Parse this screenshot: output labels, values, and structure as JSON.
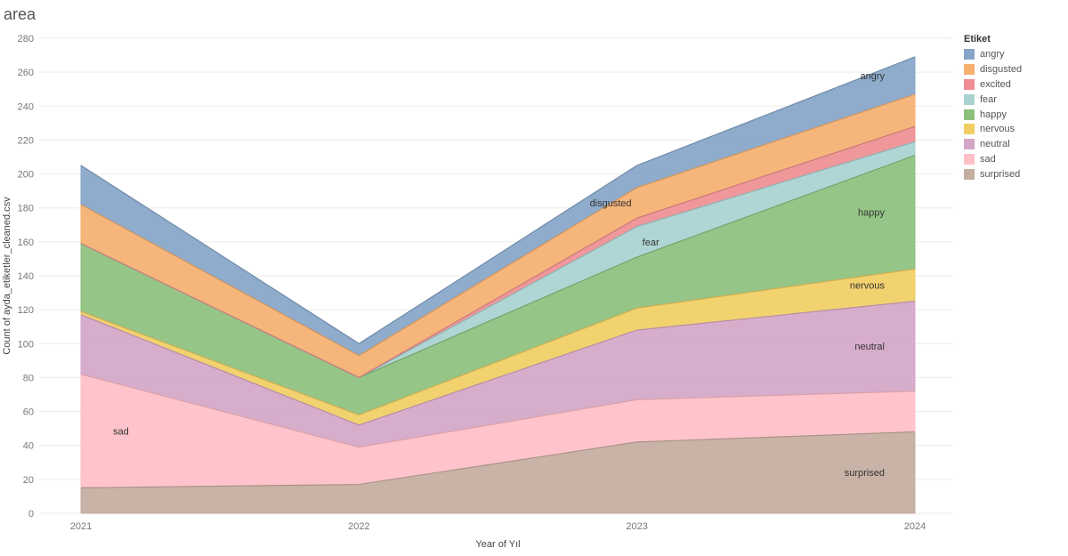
{
  "page": {
    "title": "area"
  },
  "legend": {
    "title": "Etiket"
  },
  "chart_data": {
    "type": "area",
    "stacked": true,
    "x": [
      "2021",
      "2022",
      "2023",
      "2024"
    ],
    "xlabel": "Year of Yıl",
    "ylabel": "Count of ayda_etiketler_cleaned.csv",
    "ylim": [
      0,
      280
    ],
    "yticks": [
      0,
      20,
      40,
      60,
      80,
      100,
      120,
      140,
      160,
      180,
      200,
      220,
      240,
      260,
      280
    ],
    "series": [
      {
        "name": "surprised",
        "color": "#c4ad9f",
        "values": [
          15,
          17,
          42,
          48
        ]
      },
      {
        "name": "sad",
        "color": "#ffbfc7",
        "values": [
          67,
          22,
          25,
          24
        ]
      },
      {
        "name": "neutral",
        "color": "#d4a6c8",
        "values": [
          35,
          13,
          41,
          53
        ]
      },
      {
        "name": "nervous",
        "color": "#f1ce63",
        "values": [
          2,
          6,
          13,
          19
        ]
      },
      {
        "name": "happy",
        "color": "#8cc07d",
        "values": [
          40,
          22,
          30,
          67
        ]
      },
      {
        "name": "fear",
        "color": "#a8d3d1",
        "values": [
          0,
          0,
          18,
          8
        ]
      },
      {
        "name": "excited",
        "color": "#ee8e92",
        "values": [
          0,
          0,
          5,
          9
        ]
      },
      {
        "name": "disgusted",
        "color": "#f5b070",
        "values": [
          23,
          13,
          18,
          19
        ]
      },
      {
        "name": "angry",
        "color": "#86a5c8",
        "values": [
          23,
          7,
          13,
          22
        ]
      }
    ],
    "annotations": [
      {
        "series": "sad",
        "label": "sad",
        "at_x": "2021"
      },
      {
        "series": "disgusted",
        "label": "disgusted",
        "at_x": "2023"
      },
      {
        "series": "fear",
        "label": "fear",
        "at_x": "2023"
      },
      {
        "series": "angry",
        "label": "angry",
        "at_x": "2024"
      },
      {
        "series": "happy",
        "label": "happy",
        "at_x": "2024"
      },
      {
        "series": "nervous",
        "label": "nervous",
        "at_x": "2024"
      },
      {
        "series": "neutral",
        "label": "neutral",
        "at_x": "2024"
      },
      {
        "series": "surprised",
        "label": "surprised",
        "at_x": "2024"
      }
    ]
  }
}
